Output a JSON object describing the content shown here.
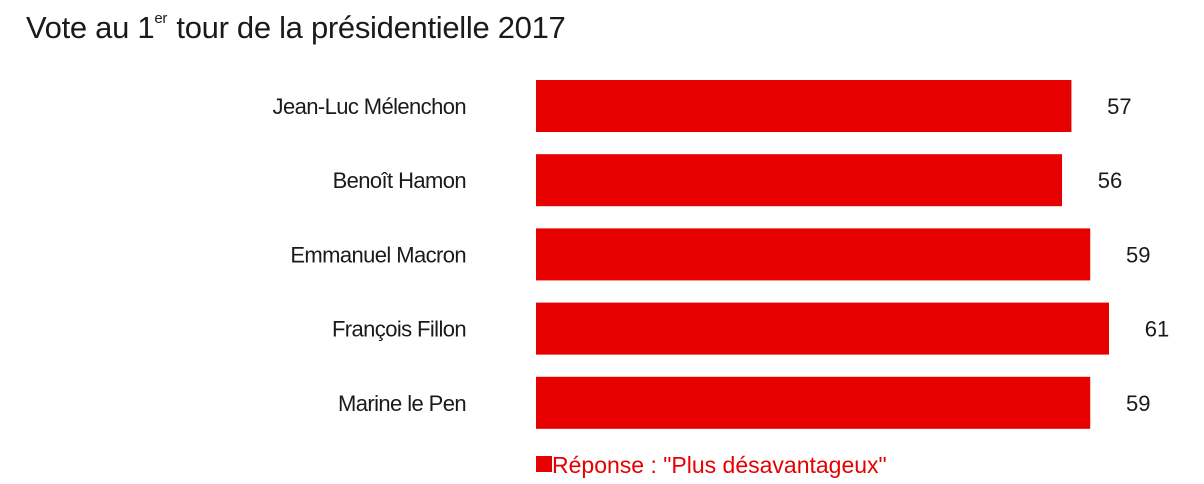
{
  "chart_data": {
    "type": "bar",
    "orientation": "horizontal",
    "title": {
      "prefix": "Vote au 1",
      "superscript": "er",
      "suffix": " tour de la présidentielle 2017"
    },
    "categories": [
      "Jean-Luc Mélenchon",
      "Benoît Hamon",
      "Emmanuel Macron",
      "François Fillon",
      "Marine le Pen"
    ],
    "series": [
      {
        "name": "Réponse : \"Plus désavantageux\"",
        "values": [
          57,
          56,
          59,
          61,
          59
        ],
        "color": "#e60000"
      }
    ],
    "xlim": [
      0,
      61
    ],
    "grid": false,
    "legend_position": "bottom-center",
    "data_labels": true
  }
}
